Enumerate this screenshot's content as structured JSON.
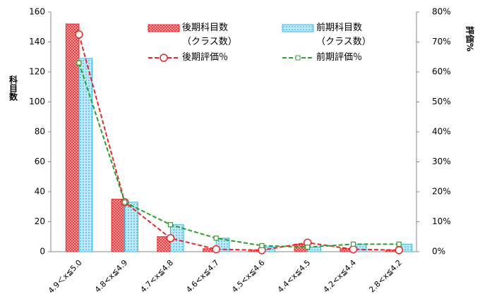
{
  "chart_data": {
    "type": "bar-line",
    "y_label": "科目数",
    "y2_label": "評価%",
    "categories": [
      "4.9＜x≦5.0",
      "4.8<x≦4.9",
      "4.7<x≦4.8",
      "4.6<x≦4.7",
      "4.5<x≦4.6",
      "4.4<x≦4.5",
      "4.2<x≦4.4",
      "2.8<x≦4.2"
    ],
    "series": [
      {
        "name": "後期科目数（クラス数）",
        "type": "bar",
        "color": "#e8262b",
        "values": [
          152,
          35,
          10,
          2,
          1,
          5,
          2,
          1
        ]
      },
      {
        "name": "前期科目数（クラス数）",
        "type": "bar",
        "color": "#33b5e5",
        "values": [
          129,
          33,
          18,
          9,
          3,
          3,
          5,
          5
        ]
      },
      {
        "name": "後期評価％",
        "type": "line",
        "axis": "y2",
        "color": "#e8262b",
        "marker": "circle",
        "values": [
          72.5,
          16.5,
          4.5,
          0.8,
          0.5,
          3,
          0.8,
          0.5
        ]
      },
      {
        "name": "前期評価％",
        "type": "line",
        "axis": "y2",
        "color": "#2ca02c",
        "marker": "square",
        "values": [
          63,
          16.5,
          9,
          4.5,
          2,
          1.5,
          2.5,
          2.5
        ]
      }
    ],
    "ylim": [
      0,
      160
    ],
    "yticks": [
      0,
      20,
      40,
      60,
      80,
      100,
      120,
      140,
      160
    ],
    "y2lim": [
      0,
      80
    ],
    "y2ticks": [
      {
        "value": 0,
        "label": "0%"
      },
      {
        "value": 10,
        "label": "10%"
      },
      {
        "value": 20,
        "label": "20%"
      },
      {
        "value": 30,
        "label": "30%"
      },
      {
        "value": 40,
        "label": "40%"
      },
      {
        "value": 50,
        "label": "50%"
      },
      {
        "value": 60,
        "label": "60%"
      },
      {
        "value": 70,
        "label": "70%"
      },
      {
        "value": 80,
        "label": "80%"
      }
    ],
    "grid": false
  }
}
